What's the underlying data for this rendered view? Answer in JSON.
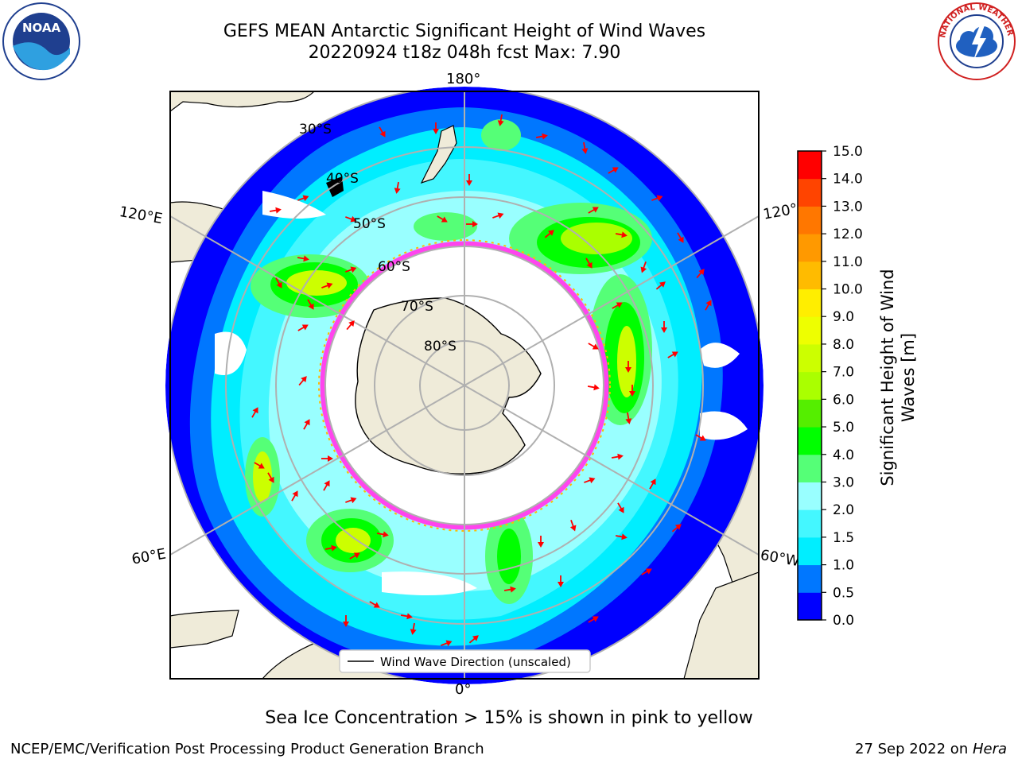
{
  "title": {
    "line1": "GEFS MEAN Antarctic Significant Height of Wind Waves",
    "line2": "20220924 t18z 048h fcst   Max: 7.90"
  },
  "logos": {
    "left_text": "NOAA",
    "right_text": "NATIONAL WEATHER SERVICE"
  },
  "map": {
    "lon_labels": {
      "top": "180°",
      "bottom": "0°",
      "left_upper": "120°E",
      "left_lower": "60°E",
      "right_upper": "120°",
      "right_lower": "60°W"
    },
    "lat_labels": [
      "30°S",
      "40°S",
      "50°S",
      "60°S",
      "70°S",
      "80°S"
    ],
    "legend_label": "Wind Wave Direction (unscaled)",
    "colors": {
      "land": "#efebd9",
      "ice": "#ff44ee",
      "arrow": "#ff0000",
      "grid": "#b0b0b0"
    }
  },
  "colorbar": {
    "label_line1": "Significant Height of Wind",
    "label_line2": "Waves [m]",
    "ticks": [
      "0.0",
      "0.5",
      "1.0",
      "1.5",
      "2.0",
      "3.0",
      "4.0",
      "5.0",
      "6.0",
      "7.0",
      "8.0",
      "9.0",
      "10.0",
      "11.0",
      "12.0",
      "13.0",
      "14.0",
      "15.0"
    ],
    "colors": [
      "#0000ff",
      "#0077ff",
      "#00eeff",
      "#44f7ff",
      "#99ffff",
      "#55ff77",
      "#00ff00",
      "#55ee00",
      "#aaff00",
      "#ccff00",
      "#eeff00",
      "#ffee00",
      "#ffbb00",
      "#ff9900",
      "#ff7700",
      "#ff4400",
      "#ff0000"
    ]
  },
  "caption": "Sea Ice Concentration > 15% is shown in pink to yellow",
  "footer": {
    "left": "NCEP/EMC/Verification Post Processing Product Generation Branch",
    "date": "27 Sep 2022 on ",
    "host": "Hera"
  }
}
